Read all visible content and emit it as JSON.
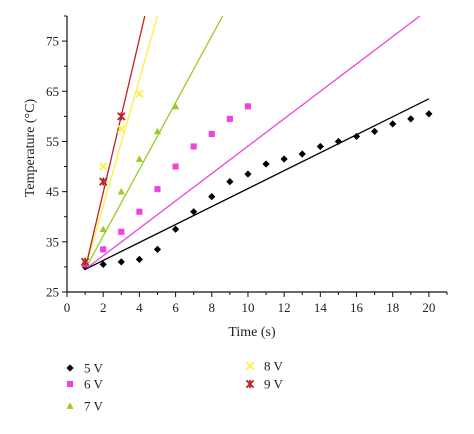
{
  "chart_data": {
    "type": "scatter",
    "xlabel": "Time (s)",
    "ylabel": "Temperature (°C)",
    "xlim": [
      0,
      21
    ],
    "ylim": [
      25,
      80
    ],
    "xticks": [
      0,
      2,
      4,
      6,
      8,
      10,
      12,
      14,
      16,
      18,
      20
    ],
    "yticks": [
      25,
      35,
      45,
      55,
      65,
      75
    ],
    "grid": false,
    "legend_position": "bottom",
    "series": [
      {
        "name": "5 V",
        "color": "#000000",
        "marker": "diamond",
        "points": [
          [
            1,
            30.0
          ],
          [
            2,
            30.5
          ],
          [
            3,
            31.0
          ],
          [
            4,
            31.5
          ],
          [
            5,
            33.5
          ],
          [
            6,
            37.5
          ],
          [
            7,
            41.0
          ],
          [
            8,
            44.0
          ],
          [
            9,
            47.0
          ],
          [
            10,
            48.5
          ],
          [
            11,
            50.5
          ],
          [
            12,
            51.5
          ],
          [
            13,
            52.5
          ],
          [
            14,
            54.0
          ],
          [
            15,
            55.0
          ],
          [
            16,
            56.0
          ],
          [
            17,
            57.0
          ],
          [
            18,
            58.5
          ],
          [
            19,
            59.5
          ],
          [
            20,
            60.5
          ]
        ],
        "fit": [
          [
            1,
            29.5
          ],
          [
            20,
            63.5
          ]
        ]
      },
      {
        "name": "6 V",
        "color": "#ee44dd",
        "marker": "square",
        "points": [
          [
            1,
            30.5
          ],
          [
            2,
            33.5
          ],
          [
            3,
            37.0
          ],
          [
            4,
            41.0
          ],
          [
            5,
            45.5
          ],
          [
            6,
            50.0
          ],
          [
            7,
            54.0
          ],
          [
            8,
            56.5
          ],
          [
            9,
            59.5
          ],
          [
            10,
            62.0
          ]
        ],
        "fit": [
          [
            1,
            29.5
          ],
          [
            19.5,
            80.0
          ]
        ]
      },
      {
        "name": "7 V",
        "color": "#99cc22",
        "marker": "triangle",
        "points": [
          [
            1,
            31.0
          ],
          [
            2,
            37.5
          ],
          [
            3,
            45.0
          ],
          [
            4,
            51.5
          ],
          [
            5,
            57.0
          ],
          [
            6,
            62.0
          ]
        ],
        "fit": [
          [
            1,
            29.5
          ],
          [
            8.6,
            80.0
          ]
        ]
      },
      {
        "name": "8 V",
        "color": "#ffee44",
        "marker": "x",
        "points": [
          [
            1,
            31.0
          ],
          [
            2,
            50.0
          ],
          [
            3,
            57.5
          ],
          [
            4,
            64.5
          ]
        ],
        "fit": [
          [
            1,
            29.5
          ],
          [
            5.0,
            80.0
          ]
        ]
      },
      {
        "name": "9 V",
        "color": "#bb2222",
        "marker": "star",
        "points": [
          [
            1,
            31.0
          ],
          [
            2,
            47.0
          ],
          [
            3,
            60.0
          ]
        ],
        "fit": [
          [
            1,
            29.5
          ],
          [
            4.3,
            80.0
          ]
        ]
      }
    ]
  }
}
